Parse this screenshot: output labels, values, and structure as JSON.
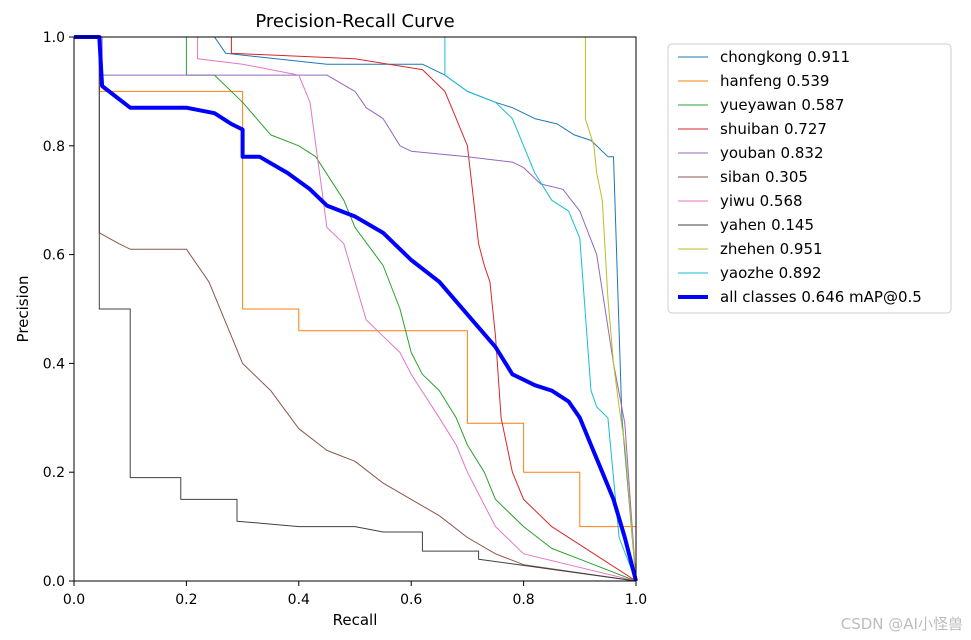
{
  "chart_data": {
    "type": "line",
    "title": "Precision-Recall Curve",
    "xlabel": "Recall",
    "ylabel": "Precision",
    "xlim": [
      0,
      1
    ],
    "ylim": [
      0,
      1
    ],
    "xticks": [
      "0.0",
      "0.2",
      "0.4",
      "0.6",
      "0.8",
      "1.0"
    ],
    "yticks": [
      "0.0",
      "0.2",
      "0.4",
      "0.6",
      "0.8",
      "1.0"
    ],
    "grid": false,
    "legend_position": "outside-right-top",
    "series": [
      {
        "name": "chongkong 0.911",
        "color": "#1f77b4",
        "width": 1,
        "x": [
          0,
          0.25,
          0.27,
          0.45,
          0.62,
          0.66,
          0.7,
          0.75,
          0.78,
          0.82,
          0.86,
          0.89,
          0.92,
          0.95,
          0.96,
          0.975,
          1.0
        ],
        "y": [
          1.0,
          1.0,
          0.97,
          0.95,
          0.95,
          0.93,
          0.9,
          0.88,
          0.87,
          0.85,
          0.84,
          0.82,
          0.81,
          0.78,
          0.78,
          0.3,
          0.0
        ]
      },
      {
        "name": "hanfeng 0.539",
        "color": "#ff7f0e",
        "width": 1,
        "x": [
          0,
          0.045,
          0.045,
          0.3,
          0.3,
          0.4,
          0.4,
          0.7,
          0.7,
          0.8,
          0.8,
          0.9,
          0.9,
          0.97,
          1.0
        ],
        "y": [
          1.0,
          1.0,
          0.9,
          0.9,
          0.5,
          0.5,
          0.46,
          0.46,
          0.29,
          0.29,
          0.2,
          0.2,
          0.1,
          0.1,
          0.1
        ]
      },
      {
        "name": "yueyawan 0.587",
        "color": "#2ca02c",
        "width": 1,
        "x": [
          0,
          0.2,
          0.2,
          0.25,
          0.3,
          0.35,
          0.4,
          0.43,
          0.48,
          0.5,
          0.55,
          0.58,
          0.6,
          0.62,
          0.65,
          0.68,
          0.7,
          0.73,
          0.75,
          0.8,
          0.85,
          0.9,
          1.0
        ],
        "y": [
          1.0,
          1.0,
          0.93,
          0.93,
          0.88,
          0.82,
          0.8,
          0.78,
          0.7,
          0.65,
          0.58,
          0.5,
          0.42,
          0.38,
          0.35,
          0.3,
          0.25,
          0.2,
          0.15,
          0.1,
          0.06,
          0.04,
          0.0
        ]
      },
      {
        "name": "shuiban 0.727",
        "color": "#d62728",
        "width": 1,
        "x": [
          0,
          0.28,
          0.28,
          0.5,
          0.62,
          0.66,
          0.68,
          0.7,
          0.72,
          0.73,
          0.74,
          0.75,
          0.76,
          0.78,
          0.8,
          0.85,
          1.0
        ],
        "y": [
          1.0,
          1.0,
          0.97,
          0.96,
          0.94,
          0.9,
          0.85,
          0.8,
          0.62,
          0.58,
          0.55,
          0.45,
          0.3,
          0.2,
          0.15,
          0.1,
          0.0
        ]
      },
      {
        "name": "youban 0.832",
        "color": "#9467bd",
        "width": 1,
        "x": [
          0,
          0.05,
          0.05,
          0.45,
          0.5,
          0.52,
          0.55,
          0.58,
          0.6,
          0.7,
          0.78,
          0.8,
          0.83,
          0.87,
          0.9,
          0.93,
          0.96,
          0.98,
          1.0
        ],
        "y": [
          1.0,
          1.0,
          0.93,
          0.93,
          0.9,
          0.87,
          0.85,
          0.8,
          0.79,
          0.78,
          0.77,
          0.76,
          0.73,
          0.72,
          0.68,
          0.6,
          0.4,
          0.29,
          0.0
        ]
      },
      {
        "name": "siban 0.305",
        "color": "#8c564b",
        "width": 1,
        "x": [
          0,
          0.045,
          0.045,
          0.08,
          0.1,
          0.2,
          0.24,
          0.28,
          0.3,
          0.35,
          0.4,
          0.45,
          0.5,
          0.55,
          0.6,
          0.65,
          0.7,
          0.75,
          0.8,
          1.0
        ],
        "y": [
          1.0,
          1.0,
          0.64,
          0.62,
          0.61,
          0.61,
          0.55,
          0.45,
          0.4,
          0.35,
          0.28,
          0.24,
          0.22,
          0.18,
          0.15,
          0.12,
          0.08,
          0.05,
          0.03,
          0.0
        ]
      },
      {
        "name": "yiwu 0.568",
        "color": "#e377c2",
        "width": 1,
        "x": [
          0,
          0.22,
          0.22,
          0.3,
          0.4,
          0.42,
          0.45,
          0.48,
          0.5,
          0.52,
          0.55,
          0.58,
          0.6,
          0.65,
          0.68,
          0.7,
          0.75,
          0.8,
          1.0
        ],
        "y": [
          1.0,
          1.0,
          0.96,
          0.95,
          0.93,
          0.88,
          0.65,
          0.62,
          0.55,
          0.48,
          0.45,
          0.42,
          0.38,
          0.3,
          0.25,
          0.2,
          0.1,
          0.05,
          0.0
        ]
      },
      {
        "name": "yahen 0.145",
        "color": "#404040",
        "width": 1,
        "x": [
          0,
          0.045,
          0.045,
          0.1,
          0.1,
          0.19,
          0.19,
          0.29,
          0.29,
          0.4,
          0.5,
          0.55,
          0.62,
          0.62,
          0.72,
          0.72,
          1.0
        ],
        "y": [
          1.0,
          1.0,
          0.5,
          0.5,
          0.19,
          0.19,
          0.15,
          0.15,
          0.11,
          0.1,
          0.1,
          0.09,
          0.09,
          0.055,
          0.055,
          0.04,
          0.0
        ]
      },
      {
        "name": "zhehen 0.951",
        "color": "#bcbd22",
        "width": 1,
        "x": [
          0,
          0.91,
          0.91,
          0.925,
          0.93,
          0.94,
          0.95,
          0.96,
          0.97,
          0.98,
          1.0
        ],
        "y": [
          1.0,
          1.0,
          0.85,
          0.8,
          0.75,
          0.7,
          0.52,
          0.4,
          0.32,
          0.25,
          0.0
        ]
      },
      {
        "name": "yaozhe 0.892",
        "color": "#17becf",
        "width": 1,
        "x": [
          0,
          0.66,
          0.66,
          0.7,
          0.75,
          0.78,
          0.8,
          0.82,
          0.85,
          0.88,
          0.9,
          0.92,
          0.93,
          0.95,
          0.97,
          1.0
        ],
        "y": [
          1.0,
          1.0,
          0.93,
          0.9,
          0.88,
          0.85,
          0.8,
          0.75,
          0.7,
          0.68,
          0.63,
          0.35,
          0.32,
          0.3,
          0.08,
          0.0
        ]
      },
      {
        "name": "all classes 0.646 mAP@0.5",
        "color": "#0000ff",
        "width": 4,
        "x": [
          0,
          0.045,
          0.05,
          0.1,
          0.2,
          0.25,
          0.28,
          0.3,
          0.3,
          0.33,
          0.38,
          0.42,
          0.45,
          0.5,
          0.55,
          0.6,
          0.65,
          0.7,
          0.75,
          0.78,
          0.8,
          0.82,
          0.85,
          0.88,
          0.9,
          0.92,
          0.94,
          0.96,
          0.98,
          1.0
        ],
        "y": [
          1.0,
          1.0,
          0.91,
          0.87,
          0.87,
          0.86,
          0.84,
          0.83,
          0.78,
          0.78,
          0.75,
          0.72,
          0.69,
          0.67,
          0.64,
          0.59,
          0.55,
          0.49,
          0.43,
          0.38,
          0.37,
          0.36,
          0.35,
          0.33,
          0.3,
          0.25,
          0.2,
          0.15,
          0.08,
          0.0
        ]
      }
    ]
  },
  "watermark": "CSDN @AI小怪兽"
}
